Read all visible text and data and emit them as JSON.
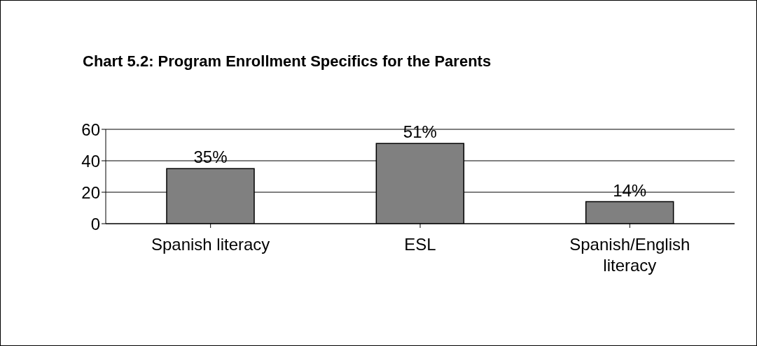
{
  "chart_data": {
    "type": "bar",
    "title": "Chart 5.2: Program Enrollment Specifics for the Parents",
    "categories": [
      "Spanish literacy",
      "ESL",
      "Spanish/English literacy"
    ],
    "values": [
      35,
      51,
      14
    ],
    "value_labels": [
      "35%",
      "51%",
      "14%"
    ],
    "color": "#808080",
    "ylim": [
      0,
      60
    ],
    "yticks": [
      0,
      20,
      40,
      60
    ],
    "grid": "y"
  }
}
